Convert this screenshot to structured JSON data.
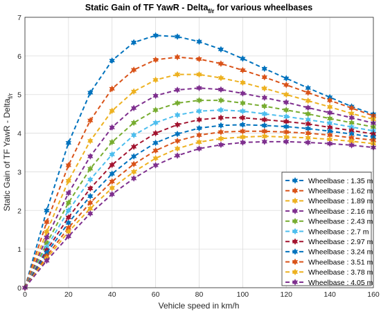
{
  "chart_data": {
    "type": "line",
    "title": {
      "main": "Static Gain of TF YawR - Delta",
      "sub": "f/r",
      "rest": " for various wheelbases"
    },
    "xlabel": "Vehicle speed in km/h",
    "ylabel": {
      "main": "Static Gain of TF YawR - Delta",
      "sub": "f/r"
    },
    "xlim": [
      0,
      160
    ],
    "ylim": [
      0,
      7
    ],
    "xticks": [
      0,
      20,
      40,
      60,
      80,
      100,
      120,
      140,
      160
    ],
    "yticks": [
      0,
      1,
      2,
      3,
      4,
      5,
      6,
      7
    ],
    "grid": true,
    "legend_position": "bottom-right",
    "x": [
      0,
      10,
      20,
      30,
      40,
      50,
      60,
      70,
      80,
      90,
      100,
      110,
      120,
      130,
      140,
      150,
      160
    ],
    "series": [
      {
        "name": "Wheelbase : 1.35 m",
        "color": "#0072BD",
        "values": [
          0,
          2.0,
          3.75,
          5.05,
          5.88,
          6.35,
          6.53,
          6.5,
          6.37,
          6.17,
          5.93,
          5.67,
          5.42,
          5.17,
          4.93,
          4.69,
          4.49
        ]
      },
      {
        "name": "Wheelbase : 1.62 m",
        "color": "#D95319",
        "values": [
          0,
          1.7,
          3.17,
          4.33,
          5.15,
          5.64,
          5.9,
          5.97,
          5.92,
          5.8,
          5.63,
          5.45,
          5.25,
          5.05,
          4.85,
          4.65,
          4.45
        ]
      },
      {
        "name": "Wheelbase : 1.89 m",
        "color": "#EDB120",
        "values": [
          0,
          1.45,
          2.77,
          3.8,
          4.58,
          5.08,
          5.38,
          5.52,
          5.52,
          5.43,
          5.31,
          5.16,
          5.0,
          4.84,
          4.68,
          4.51,
          4.36
        ]
      },
      {
        "name": "Wheelbase : 2.16 m",
        "color": "#7E2F8E",
        "values": [
          0,
          1.3,
          2.45,
          3.4,
          4.15,
          4.65,
          4.97,
          5.12,
          5.17,
          5.13,
          5.03,
          4.92,
          4.8,
          4.66,
          4.53,
          4.4,
          4.26
        ]
      },
      {
        "name": "Wheelbase : 2.43 m",
        "color": "#77AC30",
        "values": [
          0,
          1.15,
          2.2,
          3.08,
          3.77,
          4.27,
          4.6,
          4.78,
          4.85,
          4.85,
          4.78,
          4.7,
          4.6,
          4.5,
          4.38,
          4.27,
          4.16
        ]
      },
      {
        "name": "Wheelbase : 2.7 m",
        "color": "#4DBEEE",
        "values": [
          0,
          1.05,
          2.0,
          2.8,
          3.45,
          3.95,
          4.27,
          4.47,
          4.57,
          4.6,
          4.57,
          4.5,
          4.43,
          4.35,
          4.26,
          4.16,
          4.06
        ]
      },
      {
        "name": "Wheelbase : 2.97 m",
        "color": "#A2142F",
        "values": [
          0,
          0.97,
          1.82,
          2.57,
          3.18,
          3.65,
          4.0,
          4.22,
          4.35,
          4.4,
          4.4,
          4.35,
          4.3,
          4.24,
          4.15,
          4.07,
          3.98
        ]
      },
      {
        "name": "Wheelbase : 3.24 m",
        "color": "#0072BD",
        "values": [
          0,
          0.9,
          1.68,
          2.37,
          2.95,
          3.4,
          3.75,
          3.98,
          4.13,
          4.2,
          4.22,
          4.2,
          4.17,
          4.12,
          4.05,
          3.98,
          3.9
        ]
      },
      {
        "name": "Wheelbase : 3.51 m",
        "color": "#D95319",
        "values": [
          0,
          0.82,
          1.55,
          2.2,
          2.75,
          3.2,
          3.55,
          3.8,
          3.95,
          4.03,
          4.05,
          4.05,
          4.03,
          4.0,
          3.95,
          3.88,
          3.82
        ]
      },
      {
        "name": "Wheelbase : 3.78 m",
        "color": "#EDB120",
        "values": [
          0,
          0.76,
          1.45,
          2.05,
          2.58,
          3.0,
          3.35,
          3.6,
          3.77,
          3.86,
          3.9,
          3.92,
          3.9,
          3.88,
          3.84,
          3.79,
          3.73
        ]
      },
      {
        "name": "Wheelbase : 4.05 m",
        "color": "#7E2F8E",
        "values": [
          0,
          0.7,
          1.33,
          1.92,
          2.42,
          2.83,
          3.17,
          3.42,
          3.6,
          3.7,
          3.76,
          3.78,
          3.78,
          3.76,
          3.73,
          3.69,
          3.63
        ]
      }
    ]
  }
}
